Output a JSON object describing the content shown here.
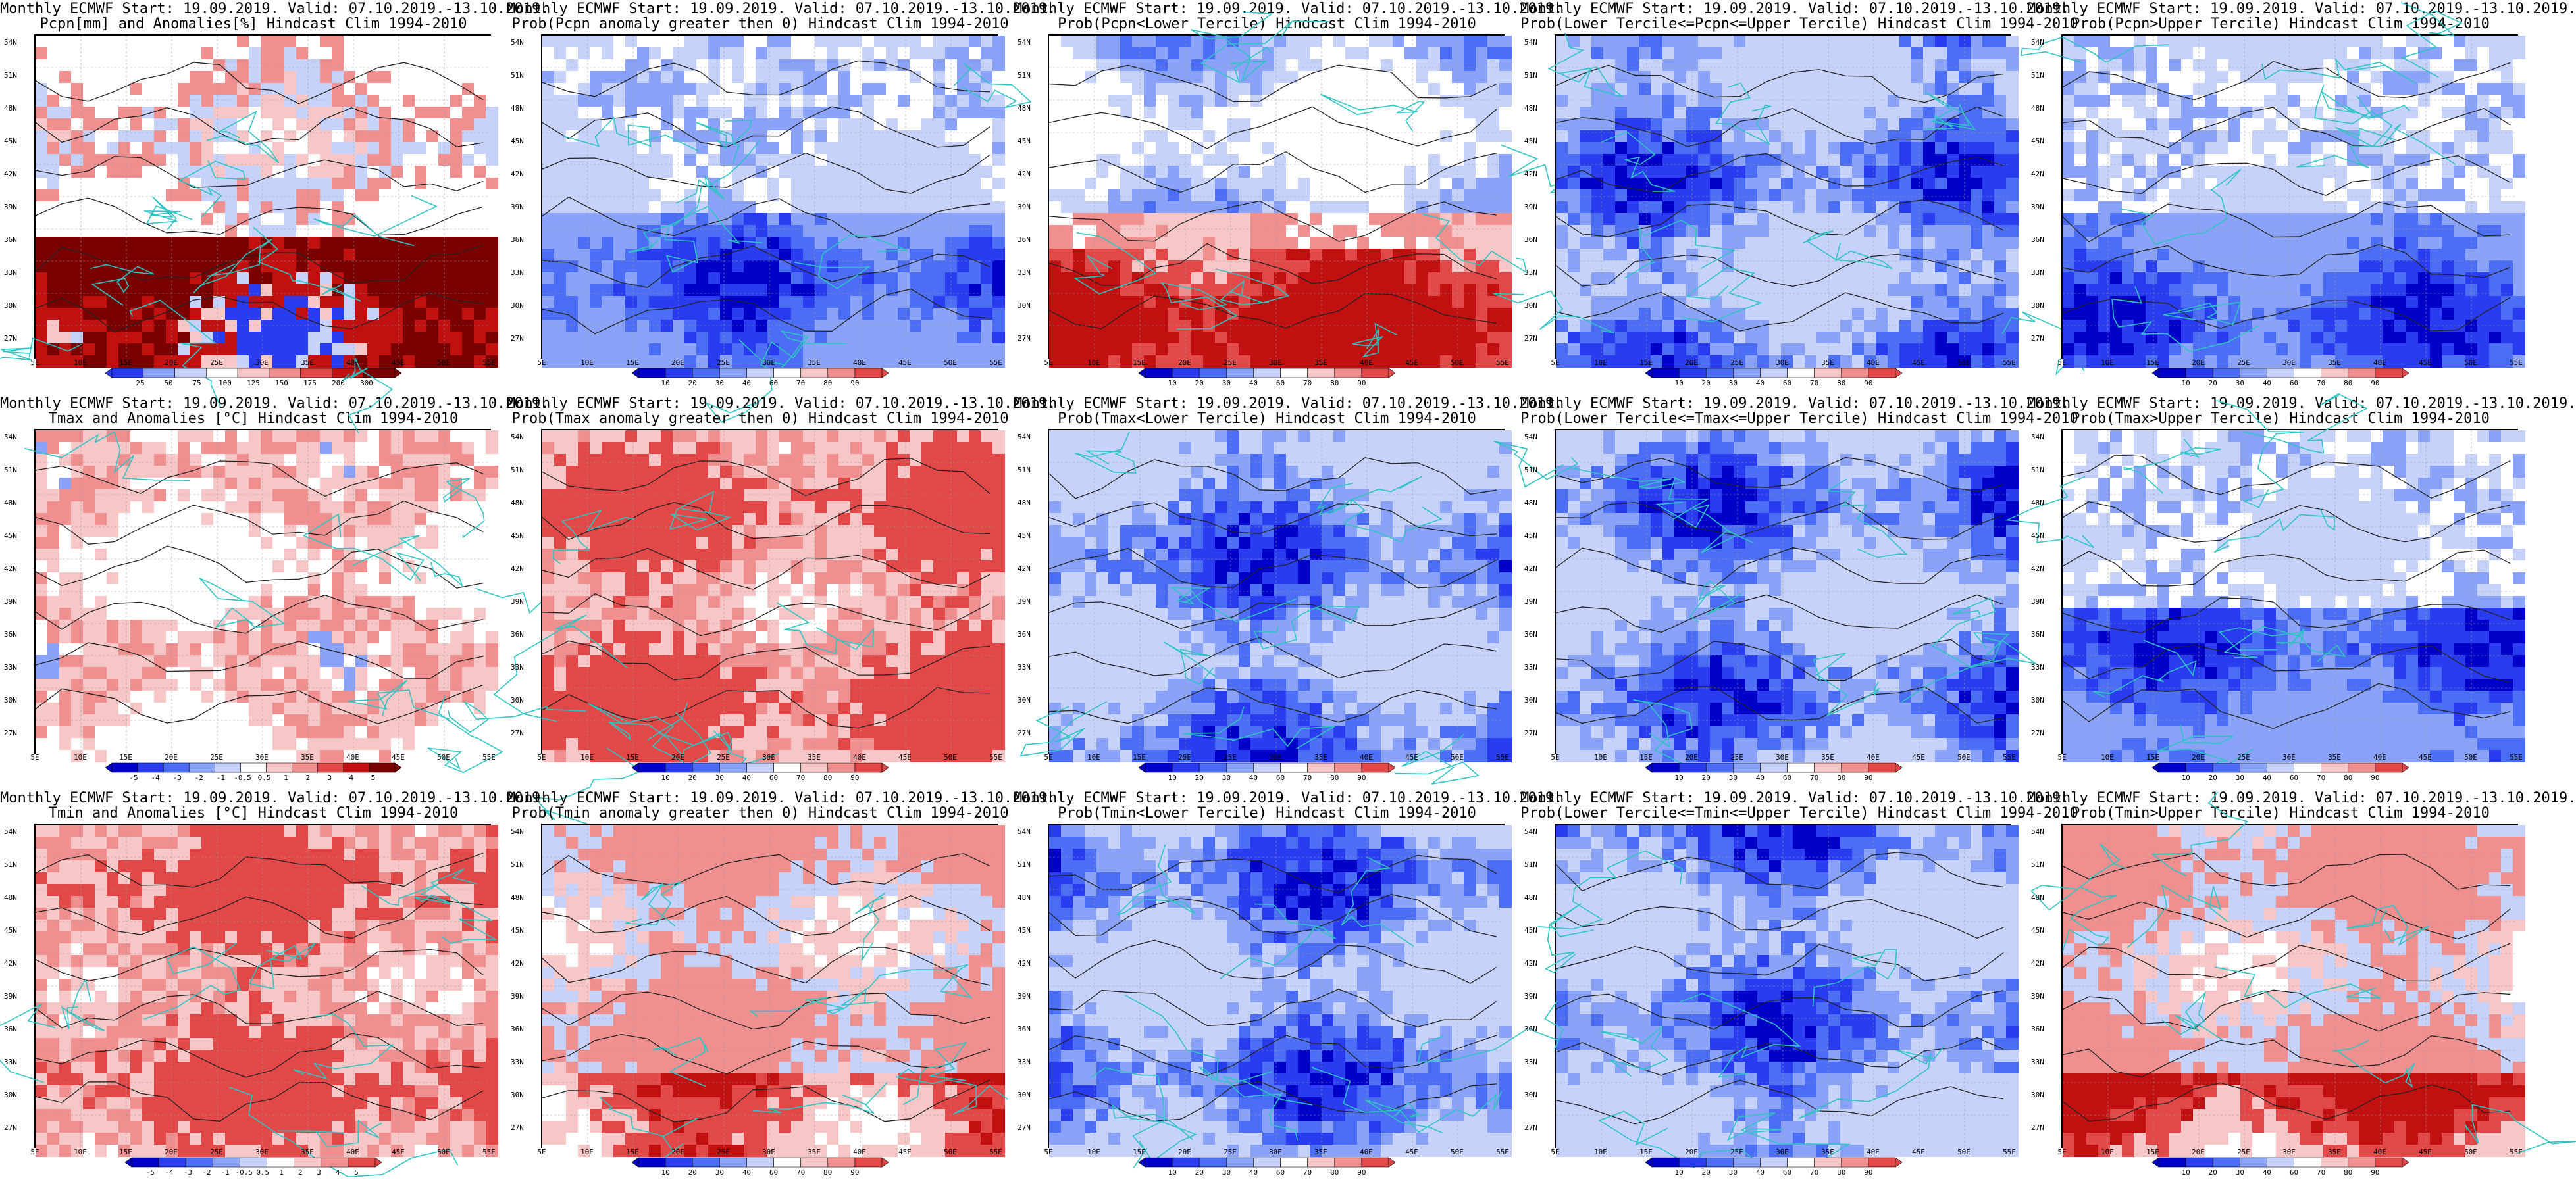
{
  "map": {
    "lat_ticks": [
      "54N",
      "51N",
      "48N",
      "45N",
      "42N",
      "39N",
      "36N",
      "33N",
      "30N",
      "27N"
    ],
    "lon_ticks": [
      "5E",
      "10E",
      "15E",
      "20E",
      "25E",
      "30E",
      "35E",
      "40E",
      "45E",
      "50E",
      "55E"
    ]
  },
  "panels": [
    {
      "title1": "Monthly ECMWF Start: 19.09.2019. Valid: 07.10.2019.-13.10.2019.",
      "title2": "Pcpn[mm] and Anomalies[%] Hindcast Clim 1994-2010",
      "scheme": "pcpn",
      "labels": [
        "25",
        "50",
        "75",
        "100",
        "125",
        "150",
        "175",
        "200",
        "300"
      ]
    },
    {
      "title1": "Monthly ECMWF Start: 19.09.2019. Valid: 07.10.2019.-13.10.2019.",
      "title2": "Prob(Pcpn anomaly greater then 0) Hindcast Clim 1994-2010",
      "scheme": "blue",
      "labels": [
        "10",
        "20",
        "30",
        "40",
        "60",
        "70",
        "80",
        "90"
      ]
    },
    {
      "title1": "Monthly ECMWF Start: 19.09.2019. Valid: 07.10.2019.-13.10.2019.",
      "title2": "Prob(Pcpn<Lower Tercile) Hindcast Clim 1994-2010",
      "scheme": "mixed",
      "labels": [
        "10",
        "20",
        "30",
        "40",
        "60",
        "70",
        "80",
        "90"
      ]
    },
    {
      "title1": "Monthly ECMWF Start: 19.09.2019. Valid: 07.10.2019.-13.10.2019.",
      "title2": "Prob(Lower Tercile<=Pcpn<=Upper Tercile) Hindcast Clim 1994-2010",
      "scheme": "deepblue",
      "labels": [
        "10",
        "20",
        "30",
        "40",
        "60",
        "70",
        "80",
        "90"
      ]
    },
    {
      "title1": "Monthly ECMWF Start: 19.09.2019. Valid: 07.10.2019.-13.10.2019.",
      "title2": "Prob(Pcpn>Upper Tercile) Hindcast Clim 1994-2010",
      "scheme": "blue",
      "labels": [
        "10",
        "20",
        "30",
        "40",
        "60",
        "70",
        "80",
        "90"
      ]
    },
    {
      "title1": "Monthly ECMWF Start: 19.09.2019. Valid: 07.10.2019.-13.10.2019.",
      "title2": "Tmax and Anomalies [°C] Hindcast Clim 1994-2010",
      "scheme": "anom",
      "labels": [
        "-5",
        "-4",
        "-3",
        "-2",
        "-1",
        "-0.5",
        "0.5",
        "1",
        "2",
        "3",
        "4",
        "5"
      ]
    },
    {
      "title1": "Monthly ECMWF Start: 19.09.2019. Valid: 07.10.2019.-13.10.2019.",
      "title2": "Prob(Tmax anomaly greater then 0) Hindcast Clim 1994-2010",
      "scheme": "warm",
      "labels": [
        "10",
        "20",
        "30",
        "40",
        "60",
        "70",
        "80",
        "90"
      ]
    },
    {
      "title1": "Monthly ECMWF Start: 19.09.2019. Valid: 07.10.2019.-13.10.2019.",
      "title2": "Prob(Tmax<Lower Tercile) Hindcast Clim 1994-2010",
      "scheme": "deepblue",
      "labels": [
        "10",
        "20",
        "30",
        "40",
        "60",
        "70",
        "80",
        "90"
      ]
    },
    {
      "title1": "Monthly ECMWF Start: 19.09.2019. Valid: 07.10.2019.-13.10.2019.",
      "title2": "Prob(Lower Tercile<=Tmax<=Upper Tercile) Hindcast Clim 1994-2010",
      "scheme": "deepblue",
      "labels": [
        "10",
        "20",
        "30",
        "40",
        "60",
        "70",
        "80",
        "90"
      ]
    },
    {
      "title1": "Monthly ECMWF Start: 19.09.2019. Valid: 07.10.2019.-13.10.2019.",
      "title2": "Prob(Tmax>Upper Tercile) Hindcast Clim 1994-2010",
      "scheme": "blue",
      "labels": [
        "10",
        "20",
        "30",
        "40",
        "60",
        "70",
        "80",
        "90"
      ]
    },
    {
      "title1": "Monthly ECMWF Start: 19.09.2019. Valid: 07.10.2019.-13.10.2019.",
      "title2": "Tmin and Anomalies [°C] Hindcast Clim 1994-2010",
      "scheme": "warm",
      "labels": [
        "-5",
        "-4",
        "-3",
        "-2",
        "-1",
        "-0.5",
        "0.5",
        "1",
        "2",
        "3",
        "4",
        "5"
      ]
    },
    {
      "title1": "Monthly ECMWF Start: 19.09.2019. Valid: 07.10.2019.-13.10.2019.",
      "title2": "Prob(Tmin anomaly greater then 0) Hindcast Clim 1994-2010",
      "scheme": "hot",
      "labels": [
        "10",
        "20",
        "30",
        "40",
        "60",
        "70",
        "80",
        "90"
      ]
    },
    {
      "title1": "Monthly ECMWF Start: 19.09.2019. Valid: 07.10.2019.-13.10.2019.",
      "title2": "Prob(Tmin<Lower Tercile) Hindcast Clim 1994-2010",
      "scheme": "deepblue",
      "labels": [
        "10",
        "20",
        "30",
        "40",
        "60",
        "70",
        "80",
        "90"
      ]
    },
    {
      "title1": "Monthly ECMWF Start: 19.09.2019. Valid: 07.10.2019.-13.10.2019.",
      "title2": "Prob(Lower Tercile<=Tmin<=Upper Tercile) Hindcast Clim 1994-2010",
      "scheme": "deepblue",
      "labels": [
        "10",
        "20",
        "30",
        "40",
        "60",
        "70",
        "80",
        "90"
      ]
    },
    {
      "title1": "Monthly ECMWF Start: 19.09.2019. Valid: 07.10.2019.-13.10.2019.",
      "title2": "Prob(Tmin>Upper Tercile) Hindcast Clim 1994-2010",
      "scheme": "hot",
      "labels": [
        "10",
        "20",
        "30",
        "40",
        "60",
        "70",
        "80",
        "90"
      ]
    }
  ],
  "colors": {
    "coast": "#2ec4c4",
    "contour": "#222222",
    "ramp": [
      "#0000c8",
      "#2a3cf0",
      "#4c6ef5",
      "#8aa2f7",
      "#c6d2fa",
      "#ffffff",
      "#f7c6c6",
      "#ef8f8f",
      "#e34848",
      "#c01010",
      "#7a0000"
    ]
  }
}
